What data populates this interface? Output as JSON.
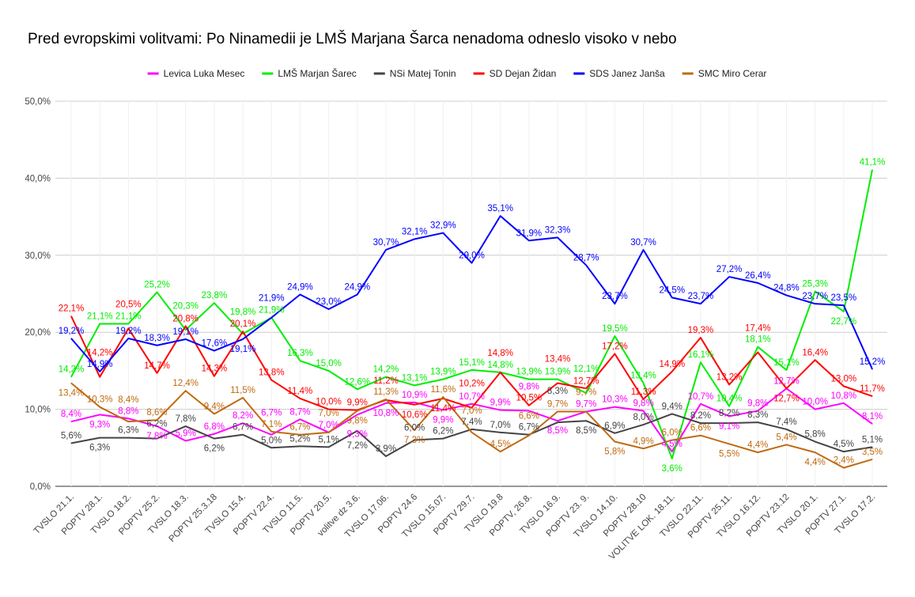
{
  "chart_data": {
    "type": "line",
    "title": "Pred evropskimi volitvami: Po Ninamedii je LMŠ Marjana Šarca nenadoma odneslo visoko v nebo",
    "xlabel": "",
    "ylabel": "",
    "ylim": [
      0,
      50
    ],
    "yticks": [
      "0,0%",
      "10,0%",
      "20,0%",
      "30,0%",
      "40,0%",
      "50,0%"
    ],
    "ytick_values": [
      0,
      10,
      20,
      30,
      40,
      50
    ],
    "grid": true,
    "legend_position": "top",
    "categories": [
      "TVSLO 21.1.",
      "POPTV 28.1.",
      "TVSLO 18.2.",
      "POPTV 25.2.",
      "TVSLO 18.3.",
      "POPTV 25.3.18",
      "TVSLO 15.4.",
      "POPTV 22.4.",
      "TVSLO 11.5.",
      "POPTV 20.5.",
      "volitve dz 3.6.",
      "TVSLO 17.06.",
      "POPTV 24.6",
      "TVSLO 15.07.",
      "POPTV 29.7.",
      "TVSLO 19.8",
      "POPTV, 26.8.",
      "TVSLO 16.9.",
      "POPTV 23. 9.",
      "TVSLO 14.10.",
      "POPTV 28.10",
      "VOLITVE LOK. 18.11.",
      "TVSLO 22.11.",
      "POPTV 25.11.",
      "TVSLO 16.12.",
      "POPTV 23.12",
      "TVSLO 20.1.",
      "POPTV 27.1.",
      "TVSLO 17.2."
    ],
    "series": [
      {
        "name": "Levica Luka Mesec",
        "color": "#ff00ff",
        "values": [
          8.4,
          9.3,
          8.8,
          7.8,
          5.9,
          6.8,
          8.2,
          6.7,
          8.7,
          7.0,
          9.3,
          10.8,
          10.9,
          9.9,
          10.7,
          9.9,
          9.8,
          8.5,
          9.7,
          10.3,
          9.8,
          4.5,
          10.7,
          9.1,
          9.8,
          12.7,
          10.0,
          10.8,
          8.1
        ]
      },
      {
        "name": "LMŠ Marjan Šarec",
        "color": "#00ee00",
        "values": [
          14.2,
          21.1,
          21.1,
          25.2,
          20.3,
          23.8,
          19.8,
          21.9,
          16.3,
          15.0,
          12.6,
          14.2,
          13.1,
          13.9,
          15.1,
          14.8,
          13.9,
          13.9,
          12.1,
          19.5,
          13.4,
          3.6,
          16.1,
          10.4,
          18.1,
          15.1,
          25.3,
          22.7,
          41.1
        ]
      },
      {
        "name": "NSi Matej Tonin",
        "color": "#444444",
        "values": [
          5.6,
          6.3,
          6.3,
          6.2,
          7.8,
          6.2,
          6.7,
          5.0,
          5.2,
          5.1,
          7.2,
          3.9,
          6.0,
          6.2,
          7.4,
          7.0,
          6.7,
          8.3,
          8.5,
          6.9,
          8.0,
          9.4,
          8.2,
          8.2,
          8.3,
          7.4,
          5.8,
          4.5,
          5.1
        ]
      },
      {
        "name": "SD Dejan Židan",
        "color": "#ff0000",
        "values": [
          22.1,
          14.2,
          20.5,
          14.7,
          20.8,
          14.3,
          20.1,
          13.8,
          11.4,
          10.0,
          9.9,
          11.2,
          10.6,
          11.4,
          10.2,
          14.8,
          10.5,
          13.4,
          12.7,
          17.2,
          11.3,
          14.9,
          19.3,
          13.2,
          17.4,
          12.7,
          16.4,
          13.0,
          11.7
        ]
      },
      {
        "name": "SDS Janez Janša",
        "color": "#0000ff",
        "values": [
          19.2,
          14.9,
          19.2,
          18.3,
          19.1,
          17.6,
          19.1,
          21.9,
          24.9,
          23.0,
          24.9,
          30.7,
          32.1,
          32.9,
          29.0,
          35.1,
          31.9,
          32.3,
          28.7,
          23.7,
          30.7,
          24.5,
          23.7,
          27.2,
          26.4,
          24.8,
          23.7,
          23.5,
          15.2
        ]
      },
      {
        "name": "SMC Miro Cerar",
        "color": "#c06a10",
        "values": [
          13.4,
          10.3,
          8.4,
          8.6,
          12.4,
          9.4,
          11.5,
          7.1,
          6.7,
          7.0,
          9.8,
          11.3,
          7.3,
          11.6,
          7.0,
          4.5,
          6.6,
          9.7,
          9.7,
          5.8,
          4.9,
          6.0,
          6.6,
          5.5,
          4.4,
          5.4,
          4.4,
          2.4,
          3.5
        ]
      }
    ]
  }
}
